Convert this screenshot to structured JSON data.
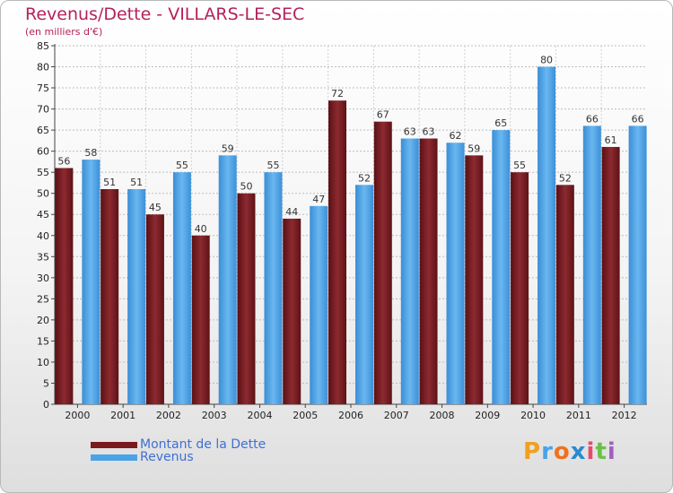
{
  "header": {
    "title": "Revenus/Dette - VILLARS-LE-SEC",
    "subtitle": "(en milliers d'€)"
  },
  "chart_data": {
    "type": "bar",
    "title": "Revenus/Dette - VILLARS-LE-SEC",
    "subtitle": "(en milliers d'€)",
    "categories": [
      "2000",
      "2001",
      "2002",
      "2003",
      "2004",
      "2005",
      "2006",
      "2007",
      "2008",
      "2009",
      "2010",
      "2011",
      "2012"
    ],
    "series": [
      {
        "name": "Montant de la Dette",
        "color": "#7a1a1f",
        "values": [
          56,
          51,
          45,
          40,
          50,
          44,
          72,
          67,
          63,
          59,
          55,
          52,
          61
        ]
      },
      {
        "name": "Revenus",
        "color": "#4aa3e6",
        "values": [
          58,
          51,
          55,
          59,
          55,
          47,
          52,
          63,
          62,
          65,
          80,
          66,
          66
        ]
      }
    ],
    "ylim": [
      0,
      85
    ],
    "ytick_step": 5,
    "grid": true,
    "legend": "bottom-left",
    "data_labels": true
  },
  "legend": {
    "items": [
      {
        "label": "Montant de la Dette",
        "color": "#7a1a1f"
      },
      {
        "label": "Revenus",
        "color": "#4aa3e6"
      }
    ]
  },
  "logo": {
    "letters": [
      "P",
      "r",
      "o",
      "x",
      "i",
      "t",
      "i"
    ],
    "colors": [
      "#f0a020",
      "#4aa3e6",
      "#f07020",
      "#2a8ad0",
      "#e84a6a",
      "#6cc04a",
      "#a060c0"
    ]
  }
}
